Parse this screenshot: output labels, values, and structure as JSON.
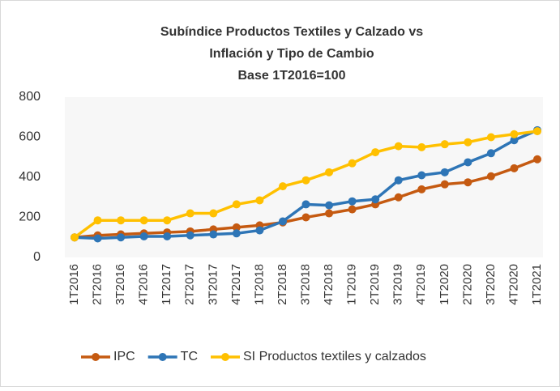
{
  "chart_data": {
    "type": "line",
    "title": [
      "Subíndice Productos Textiles y Calzado vs",
      "Inflación y Tipo de Cambio",
      "Base 1T2016=100"
    ],
    "categories": [
      "1T2016",
      "2T2016",
      "3T2016",
      "4T2016",
      "1T2017",
      "2T2017",
      "3T2017",
      "4T2017",
      "1T2018",
      "2T2018",
      "3T2018",
      "4T2018",
      "1T2019",
      "2T2019",
      "3T2019",
      "4T2019",
      "1T2020",
      "2T2020",
      "3T2020",
      "4T2020",
      "1T2021"
    ],
    "series": [
      {
        "name": "IPC",
        "color": "#c55a11",
        "values": [
          100,
          110,
          115,
          120,
          125,
          130,
          140,
          150,
          160,
          175,
          200,
          220,
          240,
          265,
          300,
          340,
          365,
          375,
          405,
          445,
          490
        ]
      },
      {
        "name": "TC",
        "color": "#2e75b6",
        "values": [
          100,
          95,
          100,
          105,
          105,
          110,
          115,
          120,
          135,
          180,
          265,
          260,
          280,
          290,
          385,
          410,
          425,
          475,
          520,
          585,
          635
        ]
      },
      {
        "name": "SI Productos textiles y calzados",
        "color": "#ffc000",
        "values": [
          100,
          185,
          185,
          185,
          185,
          220,
          220,
          265,
          285,
          355,
          385,
          425,
          470,
          525,
          555,
          550,
          565,
          575,
          600,
          615,
          630
        ]
      }
    ],
    "ylim": [
      0,
      800
    ],
    "yticks": [
      0,
      200,
      400,
      600,
      800
    ],
    "grid": false,
    "legend": "bottom"
  }
}
